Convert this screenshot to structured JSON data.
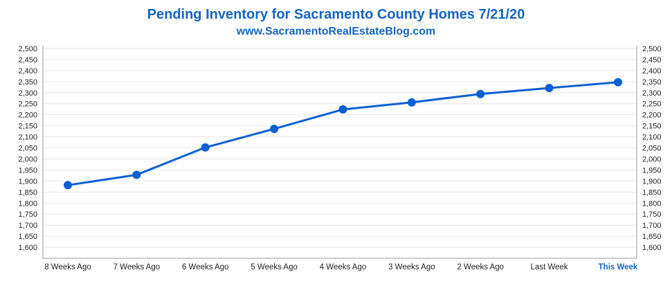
{
  "title": "Pending Inventory for Sacramento County Homes 7/21/20",
  "subtitle": "www.SacramentoRealEstateBlog.com",
  "colors": {
    "accent": "#1565c0",
    "line": "#0a5fd3",
    "grid": "#e6e6e6",
    "axis": "#999999"
  },
  "chart_data": {
    "type": "line",
    "categories": [
      "8 Weeks Ago",
      "7 Weeks Ago",
      "6 Weeks Ago",
      "5 Weeks Ago",
      "4 Weeks Ago",
      "3 Weeks Ago",
      "2 Weeks Ago",
      "Last Week",
      "This Week"
    ],
    "highlight_category": "This Week",
    "series": [
      {
        "values": [
          1881,
          1928,
          2052,
          2136,
          2224,
          2256,
          2294,
          2321,
          2347
        ]
      }
    ],
    "ylim": [
      1550,
      2500
    ],
    "yticks": [
      1600,
      1650,
      1700,
      1750,
      1800,
      1850,
      1900,
      1950,
      2000,
      2050,
      2100,
      2150,
      2200,
      2250,
      2300,
      2350,
      2400,
      2450,
      2500
    ],
    "ytick_labels": [
      "1,600",
      "1,650",
      "1,700",
      "1,750",
      "1,800",
      "1,850",
      "1,900",
      "1,950",
      "2,000",
      "2,050",
      "2,100",
      "2,150",
      "2,200",
      "2,250",
      "2,300",
      "2,350",
      "2,400",
      "2,450",
      "2,500"
    ],
    "secondary_y_axis": true,
    "grid": true,
    "legend": "none"
  }
}
